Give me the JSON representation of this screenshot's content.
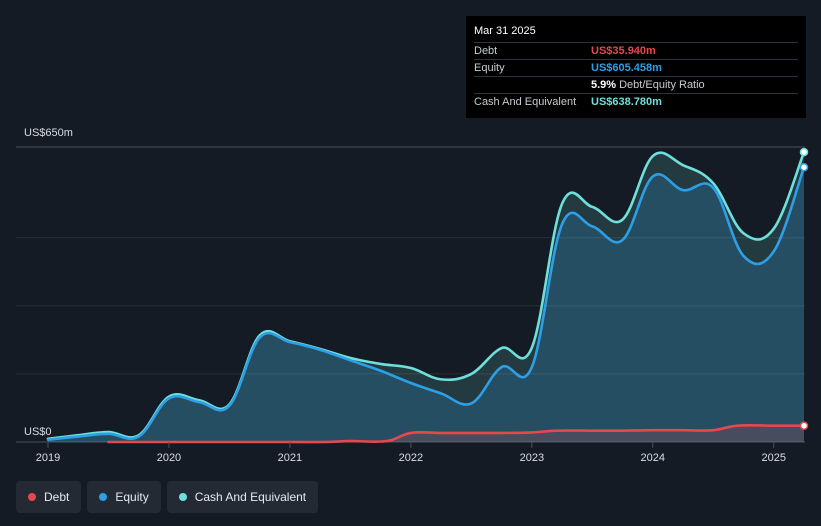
{
  "tooltip": {
    "date": "Mar 31 2025",
    "rows": [
      {
        "label": "Debt",
        "value": "US$35.940m",
        "color": "#e5484d"
      },
      {
        "label": "Equity",
        "value": "US$605.458m",
        "color": "#2e9fe6"
      },
      {
        "label": "",
        "value": "5.9%",
        "suffix": "Debt/Equity Ratio",
        "color": "#ffffff"
      },
      {
        "label": "Cash And Equivalent",
        "value": "US$638.780m",
        "color": "#6ee0dc"
      }
    ]
  },
  "legend": [
    {
      "label": "Debt",
      "color": "#e5484d"
    },
    {
      "label": "Equity",
      "color": "#2e9fe6"
    },
    {
      "label": "Cash And Equivalent",
      "color": "#6ee0dc"
    }
  ],
  "chart_data": {
    "type": "area",
    "ylim": [
      0,
      650
    ],
    "y_top_label": "US$650m",
    "y_bottom_label": "US$0",
    "x_ticks": [
      "2019",
      "2020",
      "2021",
      "2022",
      "2023",
      "2024",
      "2025"
    ],
    "x_tick_values": [
      2019,
      2020,
      2021,
      2022,
      2023,
      2024,
      2025
    ],
    "x_range": [
      2019,
      2025.25
    ],
    "grid": true,
    "series": [
      {
        "name": "Cash And Equivalent",
        "color": "#6ee0dc",
        "x": [
          2019,
          2019.25,
          2019.5,
          2019.75,
          2020,
          2020.25,
          2020.5,
          2020.75,
          2021,
          2021.25,
          2021.5,
          2021.75,
          2022,
          2022.25,
          2022.5,
          2022.75,
          2023,
          2023.25,
          2023.5,
          2023.75,
          2024,
          2024.25,
          2024.5,
          2024.75,
          2025,
          2025.25
        ],
        "y": [
          7,
          15,
          22,
          15,
          100,
          92,
          83,
          235,
          222,
          205,
          185,
          172,
          163,
          138,
          150,
          207,
          208,
          525,
          518,
          490,
          630,
          610,
          570,
          460,
          470,
          638.78
        ]
      },
      {
        "name": "Equity",
        "color": "#2e9fe6",
        "x": [
          2019,
          2019.25,
          2019.5,
          2019.75,
          2020,
          2020.25,
          2020.5,
          2020.75,
          2021,
          2021.25,
          2021.5,
          2021.75,
          2022,
          2022.25,
          2022.5,
          2022.75,
          2023,
          2023.25,
          2023.5,
          2023.75,
          2024,
          2024.25,
          2024.5,
          2024.75,
          2025,
          2025.25
        ],
        "y": [
          5,
          12,
          18,
          12,
          96,
          88,
          80,
          230,
          220,
          203,
          180,
          157,
          130,
          107,
          85,
          165,
          165,
          480,
          475,
          445,
          585,
          555,
          560,
          410,
          420,
          605.458
        ]
      },
      {
        "name": "Debt",
        "color": "#e5484d",
        "x": [
          2019.5,
          2020,
          2020.5,
          2021,
          2021.3,
          2021.5,
          2021.8,
          2022,
          2022.25,
          2022.5,
          2022.75,
          2023,
          2023.2,
          2023.5,
          2023.75,
          2024,
          2024.25,
          2024.5,
          2024.7,
          2025,
          2025.25
        ],
        "y": [
          0,
          0,
          0,
          0,
          0,
          2,
          2,
          20,
          20,
          20,
          20,
          21,
          25,
          25,
          25,
          26,
          26,
          26,
          36,
          36,
          35.94
        ]
      }
    ]
  }
}
